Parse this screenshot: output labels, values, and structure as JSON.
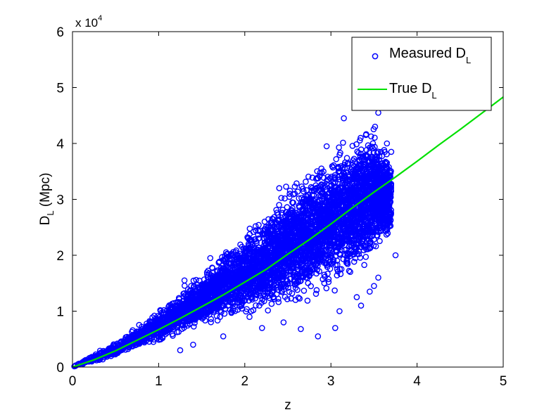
{
  "chart_data": {
    "type": "scatter",
    "title": "",
    "xlabel": "z",
    "ylabel_main": "D",
    "ylabel_sub": "L",
    "ylabel_tail": " (Mpc)",
    "xlim": [
      0,
      5
    ],
    "ylim": [
      0,
      60000
    ],
    "x_ticks": [
      0,
      1,
      2,
      3,
      4,
      5
    ],
    "x_tick_labels": [
      "0",
      "1",
      "2",
      "3",
      "4",
      "5"
    ],
    "y_ticks": [
      0,
      10000,
      20000,
      30000,
      40000,
      50000,
      60000
    ],
    "y_tick_labels": [
      "0",
      "1",
      "2",
      "3",
      "4",
      "5",
      "6"
    ],
    "y_multiplier": {
      "base": "x 10",
      "exponent": "4"
    },
    "grid": false,
    "legend_position": "top-right",
    "legend": [
      {
        "main": "Measured D",
        "sub": "L",
        "marker": "circle",
        "color": "#0000ff"
      },
      {
        "main": "True D",
        "sub": "L",
        "marker": "line",
        "color": "#00e000"
      }
    ],
    "series": [
      {
        "name": "Measured D_L",
        "kind": "scatter",
        "color": "#0000ff",
        "cloud_envelope": {
          "z": [
            0.0,
            0.25,
            0.5,
            0.75,
            1.0,
            1.25,
            1.5,
            1.75,
            2.0,
            2.25,
            2.5,
            2.75,
            3.0,
            3.25,
            3.5,
            3.7
          ],
          "upper": [
            0,
            2500,
            4500,
            7500,
            10500,
            14000,
            17500,
            21500,
            25000,
            29000,
            33000,
            36500,
            40000,
            43000,
            45000,
            38000
          ],
          "lower": [
            0,
            800,
            1800,
            2800,
            4000,
            5200,
            6200,
            7300,
            8200,
            9000,
            10000,
            11000,
            12500,
            14500,
            18000,
            22000
          ]
        },
        "outliers": [
          {
            "x": 1.25,
            "y": 3000
          },
          {
            "x": 1.4,
            "y": 4000
          },
          {
            "x": 1.75,
            "y": 5500
          },
          {
            "x": 2.2,
            "y": 7000
          },
          {
            "x": 2.45,
            "y": 8000
          },
          {
            "x": 2.65,
            "y": 6800
          },
          {
            "x": 2.85,
            "y": 5500
          },
          {
            "x": 3.05,
            "y": 7000
          },
          {
            "x": 3.1,
            "y": 10000
          },
          {
            "x": 3.35,
            "y": 11000
          },
          {
            "x": 3.45,
            "y": 13500
          },
          {
            "x": 3.55,
            "y": 16000
          },
          {
            "x": 3.75,
            "y": 20000
          },
          {
            "x": 3.55,
            "y": 45500
          },
          {
            "x": 3.65,
            "y": 40000
          },
          {
            "x": 3.7,
            "y": 38500
          },
          {
            "x": 3.15,
            "y": 44500
          },
          {
            "x": 2.95,
            "y": 39500
          },
          {
            "x": 2.4,
            "y": 32000
          },
          {
            "x": 1.6,
            "y": 19500
          },
          {
            "x": 1.3,
            "y": 15500
          },
          {
            "x": 0.95,
            "y": 9200
          },
          {
            "x": 3.5,
            "y": 14500
          },
          {
            "x": 3.3,
            "y": 12500
          }
        ]
      },
      {
        "name": "True D_L",
        "kind": "line",
        "color": "#00e000",
        "x": [
          0,
          0.25,
          0.5,
          0.75,
          1.0,
          1.25,
          1.5,
          1.75,
          2.0,
          2.25,
          2.5,
          2.75,
          3.0,
          3.25,
          3.5,
          3.75,
          4.0,
          4.25,
          4.5,
          4.75,
          5.0
        ],
        "y": [
          0,
          1300,
          2900,
          4800,
          6700,
          8700,
          10800,
          12900,
          15200,
          17500,
          20200,
          22800,
          25600,
          28500,
          31300,
          34000,
          36800,
          39700,
          42500,
          45400,
          48300
        ]
      }
    ]
  }
}
